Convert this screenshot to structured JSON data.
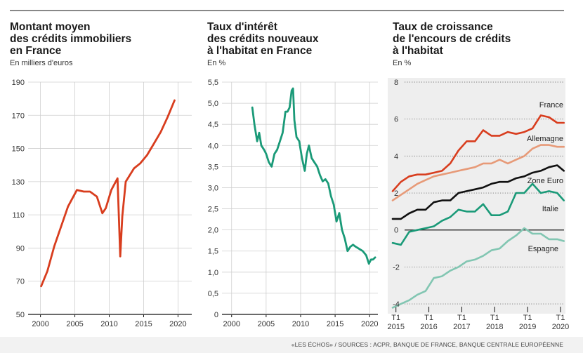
{
  "colors": {
    "red": "#d83d1e",
    "teal": "#1a9a78",
    "france": "#d83d1e",
    "allemagne": "#e79a78",
    "zone_euro": "#111111",
    "italie": "#1a9a78",
    "espagne": "#82c6b2"
  },
  "source": "«LES ÉCHOS» / SOURCES : ACPR, BANQUE DE FRANCE, BANQUE CENTRALE EUROPÉENNE",
  "chart_data": [
    {
      "type": "line",
      "title_lines": [
        "Montant moyen",
        "des crédits immobiliers",
        "en France"
      ],
      "unit": "En milliers d'euros",
      "xlim": [
        1998.2,
        2022
      ],
      "ylim": [
        50,
        190
      ],
      "xticks": [
        "2000",
        "2005",
        "2010",
        "2015",
        "2020"
      ],
      "yticks": [
        "190",
        "170",
        "150",
        "130",
        "110",
        "90",
        "70",
        "50"
      ],
      "grid": true,
      "series": [
        {
          "color": "#d83d1e",
          "x": [
            2000.1,
            2001.0,
            2002.0,
            2003.0,
            2004.0,
            2005.3,
            2006.3,
            2007.2,
            2008.2,
            2009.0,
            2009.5,
            2010.3,
            2011.2,
            2011.6,
            2011.9,
            2012.4,
            2013.0,
            2013.6,
            2014.5,
            2015.5,
            2016.5,
            2017.5,
            2018.5,
            2019.5
          ],
          "y": [
            67,
            76,
            91,
            103,
            115,
            125,
            124,
            124,
            121,
            111,
            114,
            125,
            132,
            85,
            109,
            130,
            134,
            138,
            141,
            146,
            153,
            160,
            169,
            179
          ]
        }
      ]
    },
    {
      "type": "line",
      "title_lines": [
        "Taux d'intérêt",
        "des crédits nouveaux",
        "à l'habitat en France"
      ],
      "unit": "En %",
      "xlim": [
        1998.6,
        2021.2
      ],
      "ylim": [
        0,
        5.5
      ],
      "xticks": [
        "2000",
        "2005",
        "2010",
        "2015",
        "2020"
      ],
      "yticks": [
        "5,5",
        "5,0",
        "4,5",
        "4,0",
        "3,5",
        "3,0",
        "2,5",
        "2,0",
        "1,5",
        "1,0",
        "0,5",
        "0"
      ],
      "grid": true,
      "series": [
        {
          "color": "#1a9a78",
          "x": [
            2003.0,
            2003.3,
            2003.7,
            2004.0,
            2004.3,
            2004.7,
            2005.0,
            2005.4,
            2005.8,
            2006.2,
            2006.6,
            2007.0,
            2007.4,
            2007.8,
            2008.1,
            2008.4,
            2008.7,
            2008.9,
            2009.1,
            2009.4,
            2009.8,
            2010.2,
            2010.6,
            2010.9,
            2011.2,
            2011.6,
            2012.0,
            2012.4,
            2012.8,
            2013.2,
            2013.6,
            2014.0,
            2014.4,
            2014.8,
            2015.2,
            2015.6,
            2016.0,
            2016.4,
            2016.8,
            2017.2,
            2017.6,
            2018.0,
            2018.5,
            2019.0,
            2019.5,
            2019.9,
            2020.2,
            2020.5,
            2020.8
          ],
          "y": [
            4.9,
            4.5,
            4.1,
            4.3,
            4.0,
            3.9,
            3.8,
            3.6,
            3.5,
            3.8,
            3.9,
            4.1,
            4.3,
            4.8,
            4.8,
            4.9,
            5.3,
            5.35,
            4.6,
            4.2,
            4.1,
            3.7,
            3.4,
            3.8,
            4.0,
            3.7,
            3.6,
            3.5,
            3.3,
            3.15,
            3.2,
            3.1,
            2.8,
            2.6,
            2.2,
            2.4,
            2.0,
            1.8,
            1.5,
            1.6,
            1.65,
            1.6,
            1.55,
            1.5,
            1.4,
            1.2,
            1.3,
            1.3,
            1.35
          ]
        }
      ]
    },
    {
      "type": "line",
      "title_lines": [
        "Taux de croissance",
        "de l'encours de crédits",
        "à l'habitat"
      ],
      "unit": "En %",
      "xlim": [
        2014.75,
        2020.15
      ],
      "ylim": [
        -4.3,
        8
      ],
      "ytick_values": [
        8,
        6,
        4,
        2,
        0,
        -2,
        -4
      ],
      "ytick_labels": [
        "8",
        "6",
        "4",
        "2",
        "0",
        "-2",
        "-4"
      ],
      "xtick_values": [
        2015,
        2016,
        2017,
        2018,
        2019,
        2020
      ],
      "xticks_top": [
        "T1",
        "T1",
        "T1",
        "T1",
        "T1",
        "T1"
      ],
      "xticks_bottom": [
        "2015",
        "2016",
        "2017",
        "2018",
        "2019",
        "2020"
      ],
      "grid": "dotted",
      "x": [
        2014.9,
        2015.15,
        2015.4,
        2015.65,
        2015.9,
        2016.15,
        2016.4,
        2016.65,
        2016.9,
        2017.15,
        2017.4,
        2017.65,
        2017.9,
        2018.15,
        2018.4,
        2018.65,
        2018.9,
        2019.15,
        2019.4,
        2019.65,
        2019.9,
        2020.1
      ],
      "series": [
        {
          "name": "France",
          "color": "#d83d1e",
          "values": [
            2.1,
            2.6,
            2.9,
            3.0,
            3.0,
            3.1,
            3.2,
            3.6,
            4.3,
            4.8,
            4.8,
            5.4,
            5.1,
            5.1,
            5.3,
            5.2,
            5.3,
            5.5,
            6.2,
            6.1,
            5.8,
            5.8
          ]
        },
        {
          "name": "Allemagne",
          "color": "#e79a78",
          "values": [
            1.6,
            1.9,
            2.2,
            2.5,
            2.7,
            2.9,
            3.0,
            3.1,
            3.2,
            3.3,
            3.4,
            3.6,
            3.6,
            3.8,
            3.6,
            3.8,
            4.0,
            4.4,
            4.6,
            4.6,
            4.5,
            4.5
          ]
        },
        {
          "name": "Zone Euro",
          "color": "#111111",
          "values": [
            0.6,
            0.6,
            0.9,
            1.1,
            1.1,
            1.5,
            1.6,
            1.6,
            2.0,
            2.1,
            2.2,
            2.3,
            2.5,
            2.6,
            2.6,
            2.8,
            2.9,
            3.1,
            3.2,
            3.4,
            3.5,
            3.2
          ]
        },
        {
          "name": "Italie",
          "color": "#1a9a78",
          "values": [
            -0.7,
            -0.8,
            -0.1,
            0.0,
            0.1,
            0.2,
            0.5,
            0.7,
            1.1,
            1.0,
            1.0,
            1.4,
            0.8,
            0.8,
            1.0,
            2.0,
            2.0,
            2.5,
            2.0,
            2.1,
            2.0,
            1.6
          ]
        },
        {
          "name": "Espagne",
          "color": "#82c6b2",
          "values": [
            -4.2,
            -4.0,
            -3.8,
            -3.5,
            -3.3,
            -2.6,
            -2.5,
            -2.2,
            -2.0,
            -1.7,
            -1.6,
            -1.4,
            -1.1,
            -1.0,
            -0.6,
            -0.3,
            0.1,
            -0.2,
            -0.2,
            -0.5,
            -0.5,
            -0.6
          ]
        }
      ]
    }
  ]
}
